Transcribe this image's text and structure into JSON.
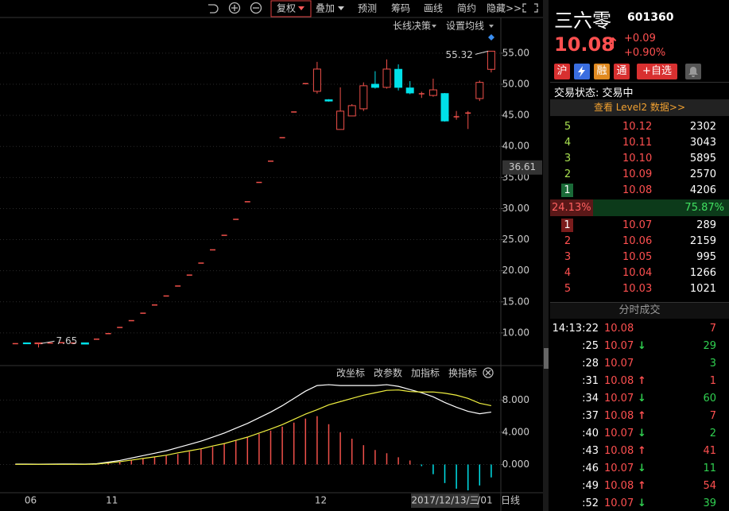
{
  "toolbar": {
    "items": [
      "复权",
      "叠加",
      "预测",
      "筹码",
      "画线",
      "简约",
      "隐藏>>"
    ],
    "indicator_buttons": [
      "长线决策",
      "设置均线"
    ],
    "panel_buttons": [
      "改坐标",
      "改参数",
      "加指标",
      "换指标"
    ],
    "period": "日线"
  },
  "chart_data": [
    {
      "type": "candlestick",
      "categories": [
        null,
        "06",
        null,
        null,
        null,
        null,
        null,
        null,
        "11",
        null,
        null,
        null,
        null,
        null,
        null,
        null,
        null,
        null,
        null,
        null,
        null,
        null,
        null,
        null,
        null,
        null,
        "12",
        null,
        null,
        null,
        null,
        null,
        null,
        null,
        null,
        null,
        null,
        null,
        null,
        null,
        "/01",
        null
      ],
      "open": [
        8.3,
        8.4,
        8.25,
        8.4,
        8.45,
        8.4,
        8.4,
        9.02,
        9.92,
        10.91,
        12.0,
        13.2,
        14.52,
        15.97,
        17.57,
        19.33,
        21.26,
        23.39,
        25.73,
        28.3,
        31.13,
        34.24,
        37.66,
        41.43,
        45.57,
        50.13,
        48.86,
        47.5,
        42.73,
        44.9,
        46.05,
        50.0,
        49.5,
        52.4,
        49.4,
        48.4,
        48.2,
        48.5,
        44.7,
        45.3,
        47.7,
        52.4
      ],
      "high": [
        8.3,
        8.45,
        8.45,
        8.4,
        8.45,
        8.45,
        8.4,
        9.02,
        9.92,
        10.91,
        12.0,
        13.2,
        14.52,
        15.97,
        17.57,
        19.33,
        21.26,
        23.39,
        25.73,
        28.3,
        31.13,
        34.24,
        37.66,
        41.43,
        45.57,
        50.13,
        53.6,
        47.6,
        49.5,
        46.8,
        50.3,
        52.1,
        54.0,
        53.2,
        50.5,
        48.8,
        50.9,
        48.6,
        45.7,
        45.7,
        50.6,
        55.32
      ],
      "low": [
        8.3,
        8.2,
        7.65,
        8.4,
        8.45,
        8.35,
        8.2,
        9.02,
        9.92,
        10.91,
        12.0,
        13.2,
        14.52,
        15.97,
        17.57,
        19.33,
        21.26,
        23.39,
        25.73,
        28.3,
        31.13,
        34.24,
        37.66,
        41.43,
        45.57,
        50.13,
        48.5,
        47.2,
        42.7,
        44.9,
        45.7,
        49.3,
        49.3,
        49.0,
        48.4,
        47.8,
        48.0,
        44.0,
        44.3,
        42.8,
        47.3,
        51.9
      ],
      "close": [
        8.3,
        8.25,
        8.4,
        8.4,
        8.45,
        8.4,
        8.2,
        9.02,
        9.92,
        10.91,
        12.0,
        13.2,
        14.52,
        15.97,
        17.57,
        19.33,
        21.26,
        23.39,
        25.73,
        28.3,
        31.13,
        34.24,
        37.66,
        41.43,
        45.57,
        50.13,
        52.44,
        47.3,
        45.67,
        46.56,
        49.76,
        49.5,
        52.44,
        49.5,
        48.6,
        48.5,
        49.1,
        44.1,
        44.8,
        45.4,
        50.3,
        55.32
      ],
      "up_color": "#f0504a",
      "down_color": "#00e0e8",
      "ylim": [
        5,
        57.8
      ],
      "yticks": [
        {
          "value": 10,
          "label": "10.00"
        },
        {
          "value": 15,
          "label": "15.00"
        },
        {
          "value": 20,
          "label": "20.00"
        },
        {
          "value": 25,
          "label": "25.00"
        },
        {
          "value": 30,
          "label": "30.00"
        },
        {
          "value": 35,
          "label": "35.00"
        },
        {
          "value": 40,
          "label": "40.00"
        },
        {
          "value": 45,
          "label": "45.00"
        },
        {
          "value": 50,
          "label": "50.00"
        },
        {
          "value": 55,
          "label": "55.00"
        }
      ],
      "grid": true,
      "annotations": [
        {
          "index": 41,
          "value": 55.32
        },
        {
          "index": 2,
          "value": 7.65
        }
      ],
      "cursor": {
        "value": 36.61,
        "date": "2017/12/13/三"
      }
    },
    {
      "type": "macd",
      "histogram": {
        "values": [
          0.05,
          0.05,
          0.05,
          0.05,
          0.05,
          0.05,
          0.05,
          0.1,
          0.2,
          0.3,
          0.5,
          0.7,
          0.9,
          1.1,
          1.3,
          1.6,
          1.9,
          2.2,
          2.6,
          3.0,
          3.4,
          3.8,
          4.2,
          4.7,
          5.2,
          5.7,
          6.0,
          5.0,
          4.0,
          3.2,
          2.4,
          1.8,
          1.4,
          0.9,
          0.5,
          -0.2,
          -1.2,
          -2.3,
          -3.0,
          -3.2,
          -2.6,
          -1.6
        ],
        "up_color": "#f0504a",
        "down_color": "#00e0e8"
      },
      "series": [
        {
          "color": "#ffffff",
          "values": [
            0.05,
            0.05,
            0.04,
            0.05,
            0.06,
            0.06,
            0.05,
            0.1,
            0.3,
            0.5,
            0.8,
            1.1,
            1.4,
            1.7,
            2.1,
            2.5,
            2.9,
            3.4,
            3.9,
            4.5,
            5.1,
            5.8,
            6.5,
            7.3,
            8.2,
            9.1,
            9.8,
            9.9,
            9.8,
            9.8,
            9.8,
            9.8,
            9.9,
            9.7,
            9.3,
            8.9,
            8.4,
            7.7,
            7.1,
            6.6,
            6.3,
            6.5
          ]
        },
        {
          "color": "#f0f040",
          "values": [
            0.02,
            0.02,
            0.02,
            0.02,
            0.02,
            0.02,
            0.02,
            0.05,
            0.2,
            0.35,
            0.55,
            0.75,
            0.95,
            1.15,
            1.45,
            1.7,
            1.95,
            2.3,
            2.6,
            3.0,
            3.4,
            3.9,
            4.4,
            4.95,
            5.6,
            6.25,
            6.8,
            7.4,
            7.8,
            8.2,
            8.6,
            8.9,
            9.2,
            9.25,
            9.05,
            9.0,
            9.0,
            8.85,
            8.6,
            8.2,
            7.6,
            7.3
          ]
        }
      ],
      "ylim": [
        -3.5,
        10.5
      ],
      "yticks": [
        {
          "value": 0,
          "label": "0.000"
        },
        {
          "value": 4,
          "label": "4.000"
        },
        {
          "value": 8,
          "label": "8.000"
        }
      ],
      "grid": true
    }
  ],
  "quote": {
    "name": "三六零",
    "code": "601360",
    "price": "10.08",
    "arrow": "↑",
    "change": "+0.09",
    "change_pct": "+0.90%",
    "badges": [
      "沪",
      "融",
      "通"
    ],
    "watch": "+自选",
    "status": "交易状态: 交易中",
    "level2": "查看 Level2 数据>>",
    "asks": [
      {
        "level": "5",
        "price": "10.12",
        "volume": "2302"
      },
      {
        "level": "4",
        "price": "10.11",
        "volume": "3043"
      },
      {
        "level": "3",
        "price": "10.10",
        "volume": "5895"
      },
      {
        "level": "2",
        "price": "10.09",
        "volume": "2570"
      },
      {
        "level": "1",
        "price": "10.08",
        "volume": "4206"
      }
    ],
    "ratio": [
      {
        "value": 24.13,
        "label": "24.13%"
      },
      {
        "value": 75.87,
        "label": "75.87%"
      }
    ],
    "bids": [
      {
        "level": "1",
        "price": "10.07",
        "volume": "289"
      },
      {
        "level": "2",
        "price": "10.06",
        "volume": "2159"
      },
      {
        "level": "3",
        "price": "10.05",
        "volume": "995"
      },
      {
        "level": "4",
        "price": "10.04",
        "volume": "1266"
      },
      {
        "level": "5",
        "price": "10.03",
        "volume": "1021"
      }
    ],
    "trades_title": "分时成交",
    "trades": [
      {
        "time": "14:13:22",
        "price": "10.08",
        "volume": "7",
        "color": "#ff5050"
      },
      {
        "time": ":25",
        "price": "10.07",
        "arrow": "↓",
        "volume": "29",
        "color": "#30d050"
      },
      {
        "time": ":28",
        "price": "10.07",
        "volume": "3",
        "color": "#30d050"
      },
      {
        "time": ":31",
        "price": "10.08",
        "arrow": "↑",
        "volume": "1",
        "color": "#ff5050"
      },
      {
        "time": ":34",
        "price": "10.07",
        "arrow": "↓",
        "volume": "60",
        "color": "#30d050"
      },
      {
        "time": ":37",
        "price": "10.08",
        "arrow": "↑",
        "volume": "7",
        "color": "#ff5050"
      },
      {
        "time": ":40",
        "price": "10.07",
        "arrow": "↓",
        "volume": "2",
        "color": "#30d050"
      },
      {
        "time": ":43",
        "price": "10.08",
        "arrow": "↑",
        "volume": "41",
        "color": "#ff5050"
      },
      {
        "time": ":46",
        "price": "10.07",
        "arrow": "↓",
        "volume": "11",
        "color": "#30d050"
      },
      {
        "time": ":49",
        "price": "10.08",
        "arrow": "↑",
        "volume": "54",
        "color": "#ff5050"
      },
      {
        "time": ":52",
        "price": "10.07",
        "arrow": "↓",
        "volume": "39",
        "color": "#30d050"
      }
    ]
  }
}
